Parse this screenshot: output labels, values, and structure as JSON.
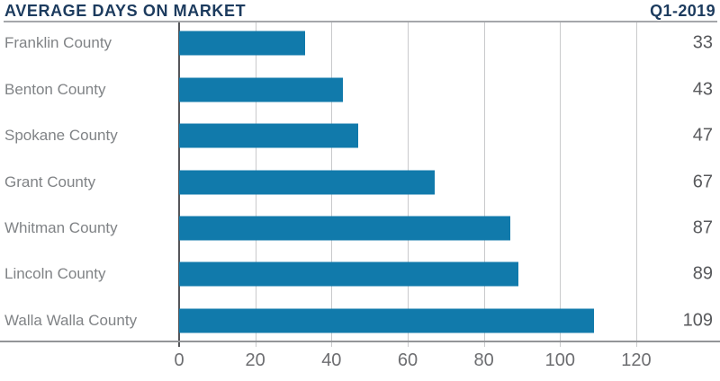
{
  "header": {
    "title": "AVERAGE DAYS ON MARKET",
    "period": "Q1-2019"
  },
  "colors": {
    "title_navy": "#1c3b5e",
    "bar_blue": "#117aab",
    "category_gray": "#808386",
    "value_gray": "#58595c",
    "tick_gray": "#6d6e71",
    "gridline_gray": "#c9cacc",
    "zero_axis_gray": "#55565a",
    "axis_line_gray": "#939598",
    "header_rule_gray": "#a5a7aa"
  },
  "chart_data": {
    "type": "bar",
    "orientation": "horizontal",
    "title": "AVERAGE DAYS ON MARKET",
    "subtitle": "Q1-2019",
    "categories": [
      "Franklin County",
      "Benton County",
      "Spokane County",
      "Grant County",
      "Whitman County",
      "Lincoln County",
      "Walla Walla County"
    ],
    "values": [
      33,
      43,
      47,
      67,
      87,
      89,
      109
    ],
    "xlabel": "",
    "ylabel": "",
    "xlim": [
      0,
      120
    ],
    "xticks": [
      0,
      20,
      40,
      60,
      80,
      100,
      120
    ],
    "grid": true,
    "value_labels_position": "right",
    "bar_color": "#117aab"
  }
}
